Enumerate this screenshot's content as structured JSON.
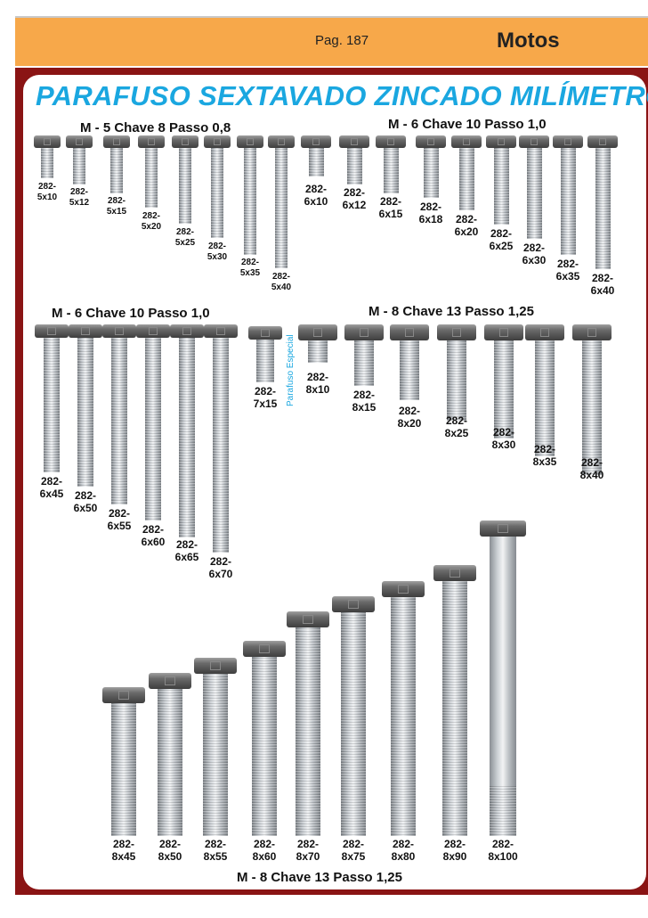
{
  "header": {
    "page": "Pag. 187",
    "section": "Motos"
  },
  "title": "PARAFUSO SEXTAVADO ZINCADO MILÍMETRO",
  "special_label": "Parafuso Especial",
  "groups": {
    "g1": "M - 5 Chave 8 Passo 0,8",
    "g2": "M - 6 Chave 10 Passo 1,0",
    "g3": "M - 6 Chave 10 Passo 1,0",
    "g4": "M - 8 Chave 13 Passo 1,25",
    "g5": "M - 8 Chave 13 Passo 1,25"
  },
  "bolts": [
    {
      "code": "282-",
      "size": "5x10"
    },
    {
      "code": "282-",
      "size": "5x12"
    },
    {
      "code": "282-",
      "size": "5x15"
    },
    {
      "code": "282-",
      "size": "5x20"
    },
    {
      "code": "282-",
      "size": "5x25"
    },
    {
      "code": "282-",
      "size": "5x30"
    },
    {
      "code": "282-",
      "size": "5x35"
    },
    {
      "code": "282-",
      "size": "5x40"
    },
    {
      "code": "282-",
      "size": "6x10"
    },
    {
      "code": "282-",
      "size": "6x12"
    },
    {
      "code": "282-",
      "size": "6x15"
    },
    {
      "code": "282-",
      "size": "6x18"
    },
    {
      "code": "282-",
      "size": "6x20"
    },
    {
      "code": "282-",
      "size": "6x25"
    },
    {
      "code": "282-",
      "size": "6x30"
    },
    {
      "code": "282-",
      "size": "6x35"
    },
    {
      "code": "282-",
      "size": "6x40"
    },
    {
      "code": "282-",
      "size": "6x45"
    },
    {
      "code": "282-",
      "size": "6x50"
    },
    {
      "code": "282-",
      "size": "6x55"
    },
    {
      "code": "282-",
      "size": "6x60"
    },
    {
      "code": "282-",
      "size": "6x65"
    },
    {
      "code": "282-",
      "size": "6x70"
    },
    {
      "code": "282-",
      "size": "7x15"
    },
    {
      "code": "282-",
      "size": "8x10"
    },
    {
      "code": "282-",
      "size": "8x15"
    },
    {
      "code": "282-",
      "size": "8x20"
    },
    {
      "code": "282-",
      "size": "8x25"
    },
    {
      "code": "282-",
      "size": "8x30"
    },
    {
      "code": "282-",
      "size": "8x35"
    },
    {
      "code": "282-",
      "size": "8x40"
    },
    {
      "code": "282-",
      "size": "8x45"
    },
    {
      "code": "282-",
      "size": "8x50"
    },
    {
      "code": "282-",
      "size": "8x55"
    },
    {
      "code": "282-",
      "size": "8x60"
    },
    {
      "code": "282-",
      "size": "8x70"
    },
    {
      "code": "282-",
      "size": "8x75"
    },
    {
      "code": "282-",
      "size": "8x80"
    },
    {
      "code": "282-",
      "size": "8x90"
    },
    {
      "code": "282-",
      "size": "8x100"
    }
  ]
}
